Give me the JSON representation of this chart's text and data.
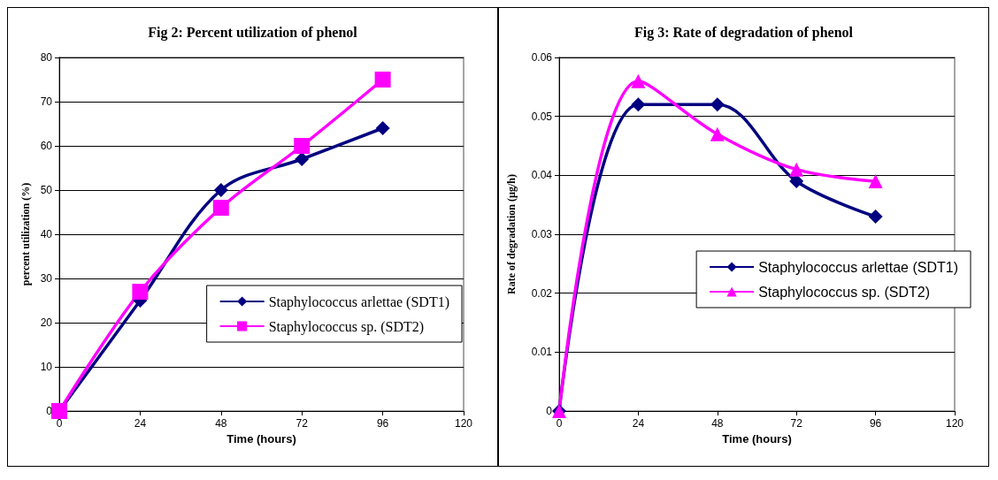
{
  "chart_data": [
    {
      "type": "line",
      "title": "Fig 2: Percent utilization of phenol",
      "xlabel": "Time (hours)",
      "ylabel": "percent utilization (%)",
      "x": [
        0,
        24,
        48,
        72,
        96
      ],
      "series": [
        {
          "name": "Staphylococcus arlettae (SDT1)",
          "color": "#000080",
          "marker": "diamond",
          "values": [
            0,
            25,
            50,
            57,
            64
          ]
        },
        {
          "name": "Staphylococcus sp. (SDT2)",
          "color": "#ff00ff",
          "marker": "square",
          "values": [
            0,
            27,
            46,
            60,
            75
          ]
        }
      ],
      "xlim": [
        0,
        120
      ],
      "xticks": [
        0,
        24,
        48,
        72,
        96,
        120
      ],
      "ylim": [
        0,
        80
      ],
      "yticks": [
        0,
        10,
        20,
        30,
        40,
        50,
        60,
        70,
        80
      ],
      "grid": "y",
      "legend": "bottom right"
    },
    {
      "type": "line",
      "title": "Fig 3: Rate of degradation of phenol",
      "xlabel": "Time (hours)",
      "ylabel": "Rate of degradation (µg/h)",
      "x": [
        0,
        24,
        48,
        72,
        96
      ],
      "series": [
        {
          "name": "Staphylococcus arlettae (SDT1)",
          "color": "#000080",
          "marker": "diamond",
          "values": [
            0,
            0.052,
            0.052,
            0.039,
            0.033
          ]
        },
        {
          "name": "Staphylococcus sp. (SDT2)",
          "color": "#ff00ff",
          "marker": "triangle",
          "values": [
            0,
            0.056,
            0.047,
            0.041,
            0.039
          ]
        }
      ],
      "xlim": [
        0,
        120
      ],
      "xticks": [
        0,
        24,
        48,
        72,
        96,
        120
      ],
      "ylim": [
        0,
        0.06
      ],
      "yticks": [
        0,
        0.01,
        0.02,
        0.03,
        0.04,
        0.05,
        0.06
      ],
      "grid": "y",
      "legend": "right"
    }
  ]
}
